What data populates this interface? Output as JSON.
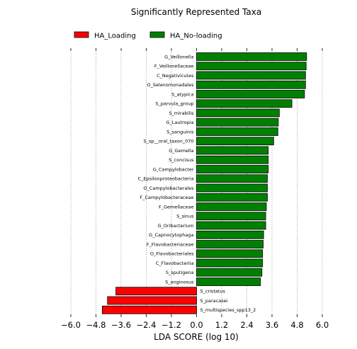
{
  "chart_data": {
    "type": "bar",
    "orientation": "horizontal",
    "title": "Significantly Represented Taxa",
    "xlabel": "LDA SCORE (log 10)",
    "ylabel": "",
    "xlim": [
      -6.0,
      6.0
    ],
    "xticks": [
      "−6.0",
      "−4.8",
      "−3.6",
      "−2.4",
      "−1.2",
      "0.0",
      "1.2",
      "2.4",
      "3.6",
      "4.8",
      "6.0"
    ],
    "xtick_values": [
      -6.0,
      -4.8,
      -3.6,
      -2.4,
      -1.2,
      0.0,
      1.2,
      2.4,
      3.6,
      4.8,
      6.0
    ],
    "grid": "vertical-dotted",
    "legend_position": "top",
    "series": [
      {
        "name": "HA_Loading",
        "color": "#ff0000"
      },
      {
        "name": "HA_No-loading",
        "color": "#008000"
      }
    ],
    "bars": [
      {
        "label": "G_Veillonella",
        "value": 5.25,
        "series": 1
      },
      {
        "label": "F_Veillonellaceae",
        "value": 5.23,
        "series": 1
      },
      {
        "label": "C_Negativicutes",
        "value": 5.2,
        "series": 1
      },
      {
        "label": "O_Selenomonadales",
        "value": 5.2,
        "series": 1
      },
      {
        "label": "S_atypica",
        "value": 5.15,
        "series": 1
      },
      {
        "label": "S_parvula_group",
        "value": 4.55,
        "series": 1
      },
      {
        "label": "S_mirabilis",
        "value": 3.95,
        "series": 1
      },
      {
        "label": "G_Lautropia",
        "value": 3.9,
        "series": 1
      },
      {
        "label": "S_sanguinis",
        "value": 3.88,
        "series": 1
      },
      {
        "label": "S_sp__oral_taxon_070",
        "value": 3.68,
        "series": 1
      },
      {
        "label": "G_Gemella",
        "value": 3.42,
        "series": 1
      },
      {
        "label": "S_concisus",
        "value": 3.42,
        "series": 1
      },
      {
        "label": "G_Campylobacter",
        "value": 3.42,
        "series": 1
      },
      {
        "label": "C_Epsilonproteobacteria",
        "value": 3.38,
        "series": 1
      },
      {
        "label": "O_Campylobacterales",
        "value": 3.38,
        "series": 1
      },
      {
        "label": "F_Campylobacteraceae",
        "value": 3.38,
        "series": 1
      },
      {
        "label": "F_Gemellaceae",
        "value": 3.33,
        "series": 1
      },
      {
        "label": "S_sinus",
        "value": 3.3,
        "series": 1
      },
      {
        "label": "G_Oribacterium",
        "value": 3.3,
        "series": 1
      },
      {
        "label": "G_Capnocytophaga",
        "value": 3.2,
        "series": 1
      },
      {
        "label": "F_Flavobacteriaceae",
        "value": 3.18,
        "series": 1
      },
      {
        "label": "O_Flavobacteriales",
        "value": 3.15,
        "series": 1
      },
      {
        "label": "C_Flavobacteriia",
        "value": 3.15,
        "series": 1
      },
      {
        "label": "S_sputigena",
        "value": 3.12,
        "series": 1
      },
      {
        "label": "S_anginosus",
        "value": 3.05,
        "series": 1
      },
      {
        "label": "S_cristatus",
        "value": -3.85,
        "series": 0
      },
      {
        "label": "S_paracasei",
        "value": -4.25,
        "series": 0
      },
      {
        "label": "S_multispecies_spp13_2",
        "value": -4.5,
        "series": 0
      }
    ]
  }
}
